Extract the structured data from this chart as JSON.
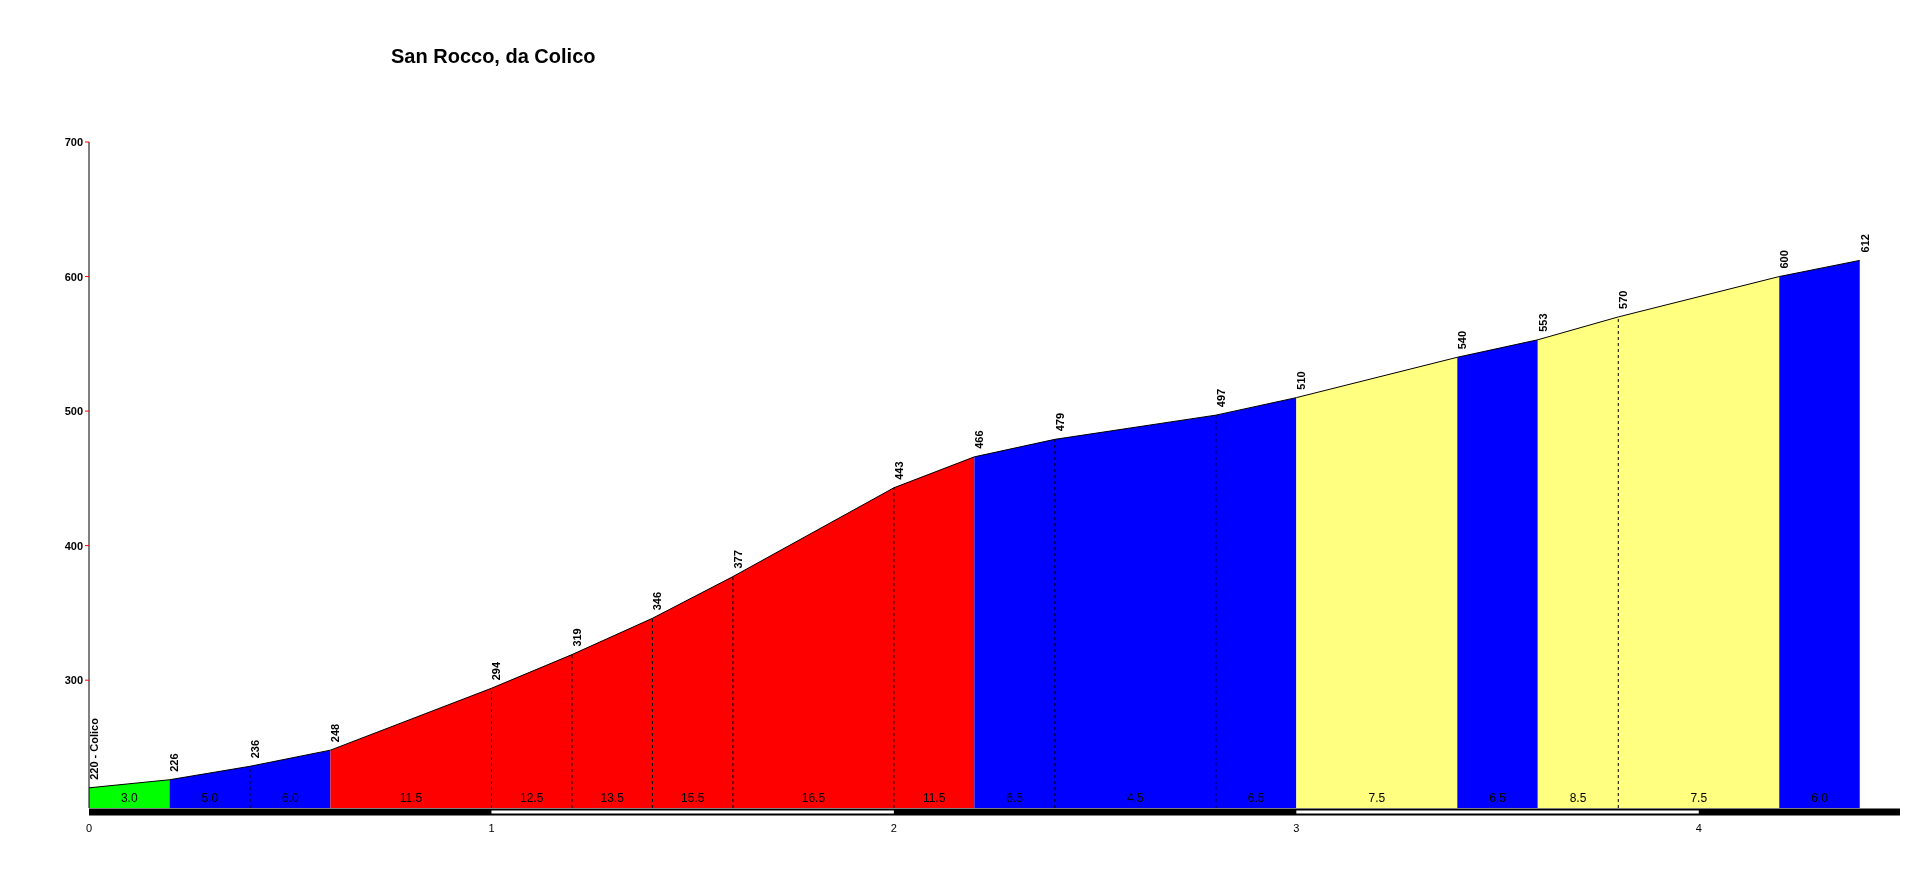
{
  "chart_data": {
    "type": "area",
    "title": "San Rocco, da Colico",
    "xlim": [
      0,
      4.5
    ],
    "xticks": [
      0,
      1,
      2,
      3,
      4
    ],
    "ylim": [
      205,
      700
    ],
    "yticks": [
      300,
      400,
      500,
      600,
      700
    ],
    "series": [
      {
        "color": "#00ff00",
        "x": [
          0,
          0.2
        ],
        "values": [
          220,
          226
        ],
        "value_labels": [
          "220 - Colico",
          "226"
        ]
      },
      {
        "color": "#0000ff",
        "x": [
          0.2,
          0.4,
          0.6
        ],
        "values": [
          226,
          236,
          248
        ],
        "value_labels": [
          null,
          "236",
          "248"
        ]
      },
      {
        "color": "#ff0000",
        "x": [
          0.6,
          1.0,
          1.2,
          1.4,
          1.6,
          2.0,
          2.2
        ],
        "values": [
          248,
          294,
          319,
          346,
          377,
          443,
          466
        ],
        "value_labels": [
          null,
          "294",
          "319",
          "346",
          "377",
          "443",
          "466"
        ]
      },
      {
        "color": "#0000ff",
        "x": [
          2.2,
          2.4,
          2.8,
          3.0
        ],
        "values": [
          466,
          479,
          497,
          510
        ],
        "value_labels": [
          null,
          "479",
          "497",
          "510"
        ]
      },
      {
        "color": "#ffff80",
        "x": [
          3.0,
          3.4
        ],
        "values": [
          510,
          540
        ],
        "value_labels": [
          null,
          "540"
        ]
      },
      {
        "color": "#0000ff",
        "x": [
          3.4,
          3.6
        ],
        "values": [
          540,
          553
        ],
        "value_labels": [
          null,
          "553"
        ]
      },
      {
        "color": "#ffff80",
        "x": [
          3.6,
          3.8,
          4.2
        ],
        "values": [
          553,
          570,
          600
        ],
        "value_labels": [
          null,
          "570",
          "600"
        ]
      },
      {
        "color": "#0000ff",
        "x": [
          4.2,
          4.4
        ],
        "values": [
          600,
          612
        ],
        "value_labels": [
          null,
          "612"
        ]
      }
    ],
    "annotations": [
      "3.0",
      "5.0",
      "6.0",
      "11.5",
      "12.5",
      "13.5",
      "15.5",
      "16.5",
      "11.5",
      "6.5",
      "4.5",
      "6.5",
      "7.5",
      "6.5",
      "8.5",
      "7.5",
      "6.0"
    ]
  }
}
